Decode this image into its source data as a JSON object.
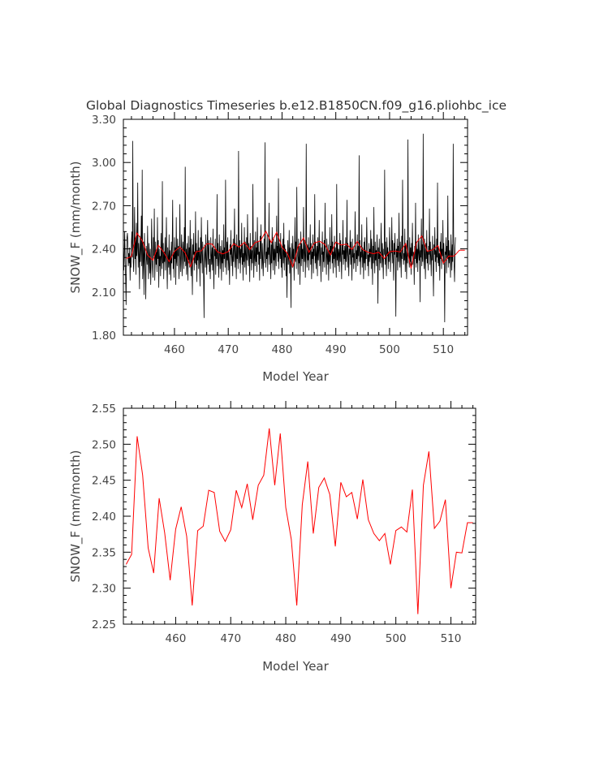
{
  "title": "Global Diagnostics Timeseries b.e12.B1850CN.f09_g16.pliohbc_ice",
  "chart_data": [
    {
      "type": "line",
      "xlabel": "Model Year",
      "ylabel": "SNOW_F (mm/month)",
      "xlim": [
        450.5,
        514.5
      ],
      "ylim": [
        1.8,
        3.3
      ],
      "x_ticks": [
        "460",
        "470",
        "480",
        "490",
        "500",
        "510"
      ],
      "y_ticks": [
        "1.80",
        "2.10",
        "2.40",
        "2.70",
        "3.00",
        "3.30"
      ],
      "grid": false,
      "legend": "none",
      "series": [
        {
          "color": "#000000",
          "description_hidden": "monthly values",
          "monthly_start_year": 450.5,
          "values": [
            2.42,
            2.25,
            2.38,
            2.52,
            2.3,
            2.2,
            2.01,
            2.36,
            2.48,
            2.51,
            2.43,
            2.28,
            2.37,
            2.3,
            2.41,
            2.18,
            2.35,
            2.27,
            2.45,
            2.52,
            2.34,
            3.15,
            2.31,
            2.24,
            2.39,
            2.69,
            2.33,
            2.47,
            2.22,
            2.58,
            2.35,
            2.41,
            2.86,
            2.27,
            2.44,
            2.36,
            2.12,
            2.49,
            2.31,
            2.4,
            2.63,
            2.28,
            2.95,
            2.19,
            2.33,
            2.45,
            2.08,
            2.51,
            2.37,
            2.26,
            2.05,
            2.42,
            2.34,
            2.29,
            2.56,
            2.31,
            2.19,
            2.44,
            2.36,
            2.23,
            2.4,
            2.15,
            2.31,
            2.61,
            2.42,
            2.27,
            2.2,
            2.48,
            2.35,
            2.68,
            2.18,
            2.31,
            2.45,
            2.29,
            2.38,
            2.24,
            2.62,
            2.33,
            2.46,
            2.13,
            2.4,
            2.28,
            2.35,
            2.21,
            2.51,
            2.34,
            2.26,
            2.87,
            2.3,
            2.44,
            2.19,
            2.38,
            2.31,
            2.48,
            2.25,
            2.36,
            2.62,
            2.29,
            2.12,
            2.41,
            2.34,
            2.27,
            2.5,
            2.22,
            2.39,
            2.33,
            2.18,
            2.45,
            2.3,
            2.43,
            2.74,
            2.26,
            2.37,
            2.2,
            2.48,
            2.33,
            2.41,
            2.15,
            2.62,
            2.31,
            2.28,
            2.47,
            2.35,
            2.42,
            2.19,
            2.29,
            2.71,
            2.36,
            2.24,
            2.39,
            2.5,
            2.21,
            2.33,
            2.45,
            2.38,
            2.26,
            2.55,
            2.31,
            2.97,
            2.28,
            2.4,
            2.22,
            2.44,
            2.35,
            2.18,
            2.49,
            2.32,
            2.41,
            2.27,
            2.6,
            2.34,
            2.21,
            2.47,
            2.3,
            2.08,
            2.43,
            2.36,
            2.51,
            2.25,
            2.38,
            2.3,
            2.66,
            2.29,
            2.44,
            2.17,
            2.39,
            2.32,
            2.53,
            2.26,
            2.41,
            2.35,
            2.14,
            2.48,
            2.3,
            2.62,
            2.37,
            2.23,
            2.45,
            2.31,
            2.2,
            1.92,
            2.43,
            2.36,
            2.27,
            2.5,
            2.34,
            2.22,
            2.41,
            2.6,
            2.29,
            2.38,
            2.46,
            2.24,
            2.33,
            2.19,
            2.48,
            2.36,
            2.29,
            2.41,
            2.25,
            2.54,
            2.31,
            2.12,
            2.4,
            2.35,
            2.47,
            2.22,
            2.39,
            2.33,
            2.78,
            2.28,
            2.44,
            2.31,
            2.2,
            2.5,
            2.37,
            2.26,
            2.42,
            2.35,
            2.18,
            2.46,
            2.3,
            2.39,
            2.24,
            2.57,
            2.33,
            2.41,
            2.27,
            2.88,
            2.36,
            2.22,
            2.45,
            2.32,
            2.48,
            2.25,
            2.38,
            2.3,
            2.15,
            2.43,
            2.36,
            2.53,
            2.28,
            2.41,
            2.34,
            2.21,
            2.47,
            2.31,
            2.39,
            2.68,
            2.27,
            2.44,
            2.35,
            2.19,
            2.5,
            2.33,
            2.42,
            2.26,
            3.08,
            2.38,
            2.3,
            2.46,
            2.23,
            2.4,
            2.34,
            2.58,
            2.29,
            2.43,
            2.18,
            2.37,
            2.31,
            2.55,
            2.27,
            2.45,
            2.36,
            2.22,
            2.48,
            2.32,
            2.64,
            2.4,
            2.28,
            2.44,
            2.35,
            2.17,
            2.51,
            2.33,
            2.42,
            2.25,
            2.39,
            2.3,
            2.85,
            2.37,
            2.2,
            2.46,
            2.34,
            2.28,
            2.52,
            2.31,
            2.41,
            2.24,
            2.62,
            2.36,
            2.45,
            2.29,
            2.38,
            2.18,
            2.49,
            2.33,
            2.57,
            2.4,
            2.26,
            2.44,
            2.31,
            2.21,
            2.35,
            2.47,
            2.3,
            3.14,
            2.42,
            2.27,
            2.38,
            2.33,
            2.5,
            2.24,
            2.41,
            2.36,
            2.72,
            2.29,
            2.46,
            2.34,
            2.19,
            2.43,
            2.3,
            2.55,
            2.38,
            2.25,
            2.48,
            2.32,
            2.4,
            2.22,
            2.45,
            2.35,
            2.28,
            2.63,
            2.37,
            2.42,
            2.31,
            2.89,
            2.26,
            2.44,
            2.39,
            2.33,
            2.51,
            2.27,
            2.41,
            2.2,
            2.36,
            2.47,
            2.3,
            2.58,
            2.25,
            2.43,
            2.34,
            2.4,
            2.21,
            2.38,
            2.06,
            2.32,
            2.46,
            2.29,
            2.35,
            2.53,
            2.23,
            2.41,
            2.3,
            1.99,
            2.44,
            2.36,
            2.27,
            2.49,
            2.33,
            2.4,
            2.18,
            2.37,
            2.62,
            2.31,
            2.45,
            2.26,
            2.83,
            2.38,
            2.34,
            2.22,
            2.47,
            2.3,
            2.42,
            2.15,
            2.36,
            2.52,
            2.28,
            2.44,
            2.33,
            2.4,
            2.24,
            2.69,
            2.37,
            2.31,
            2.46,
            2.2,
            2.39,
            3.13,
            2.35,
            2.27,
            2.43,
            2.32,
            2.48,
            2.25,
            2.41,
            2.36,
            2.57,
            2.29,
            2.44,
            2.19,
            2.38,
            2.33,
            2.5,
            2.23,
            2.4,
            2.35,
            2.78,
            2.3,
            2.45,
            2.26,
            2.37,
            2.42,
            2.21,
            2.48,
            2.32,
            2.39,
            2.6,
            2.28,
            2.44,
            2.34,
            2.17,
            2.41,
            2.36,
            2.52,
            2.24,
            2.38,
            2.31,
            2.46,
            2.27,
            2.72,
            2.4,
            2.33,
            2.22,
            2.47,
            2.35,
            2.29,
            2.43,
            2.18,
            2.39,
            2.31,
            2.55,
            2.26,
            2.42,
            2.36,
            2.64,
            2.3,
            2.45,
            2.23,
            2.38,
            2.33,
            2.49,
            2.27,
            2.41,
            2.35,
            2.2,
            2.85,
            2.32,
            2.44,
            2.28,
            2.4,
            2.37,
            2.24,
            2.51,
            2.31,
            2.46,
            2.34,
            2.19,
            2.43,
            2.36,
            2.6,
            2.29,
            2.39,
            2.33,
            2.42,
            2.25,
            2.48,
            2.31,
            2.38,
            2.74,
            2.27,
            2.44,
            2.35,
            2.21,
            2.4,
            2.36,
            2.53,
            2.29,
            2.45,
            2.32,
            2.18,
            2.47,
            2.34,
            2.41,
            2.26,
            2.37,
            2.3,
            2.66,
            2.43,
            2.24,
            2.39,
            2.33,
            2.5,
            2.28,
            2.42,
            2.35,
            3.05,
            2.31,
            2.46,
            2.22,
            2.38,
            2.34,
            2.57,
            2.27,
            2.41,
            2.36,
            2.19,
            2.45,
            2.3,
            2.48,
            2.25,
            2.39,
            2.33,
            2.62,
            2.42,
            2.28,
            2.36,
            2.21,
            2.44,
            2.31,
            2.4,
            2.34,
            2.53,
            2.26,
            2.47,
            2.37,
            2.15,
            2.42,
            2.3,
            2.69,
            2.35,
            2.23,
            2.45,
            2.32,
            2.39,
            2.28,
            2.5,
            2.36,
            2.02,
            2.41,
            2.33,
            2.47,
            2.25,
            2.38,
            2.3,
            2.58,
            2.42,
            2.27,
            2.44,
            2.34,
            2.19,
            2.4,
            2.36,
            2.95,
            2.29,
            2.45,
            2.32,
            2.21,
            2.48,
            2.35,
            2.41,
            2.26,
            2.38,
            2.31,
            2.55,
            2.43,
            2.24,
            2.39,
            2.37,
            2.62,
            2.3,
            2.46,
            2.33,
            2.18,
            2.44,
            2.36,
            2.51,
            2.28,
            1.93,
            2.4,
            2.34,
            2.47,
            2.25,
            2.42,
            2.31,
            2.65,
            2.38,
            2.27,
            2.45,
            2.35,
            2.2,
            2.49,
            2.33,
            2.88,
            2.41,
            2.29,
            2.37,
            2.32,
            2.54,
            2.24,
            2.43,
            2.36,
            2.19,
            2.46,
            2.3,
            3.16,
            2.39,
            2.34,
            2.27,
            2.48,
            2.31,
            2.41,
            2.22,
            2.44,
            2.35,
            2.58,
            2.29,
            2.38,
            2.36,
            2.15,
            2.42,
            2.33,
            2.72,
            2.27,
            2.45,
            2.3,
            2.4,
            2.24,
            2.5,
            2.37,
            2.32,
            2.46,
            2.03,
            2.39,
            2.34,
            2.61,
            2.28,
            2.43,
            2.31,
            3.2,
            2.41,
            2.26,
            2.47,
            2.35,
            2.19,
            2.44,
            2.33,
            2.53,
            2.3,
            2.38,
            2.25,
            2.42,
            2.36,
            2.68,
            2.29,
            2.45,
            2.34,
            2.21,
            2.4,
            2.32,
            2.49,
            2.27,
            2.07,
            2.43,
            2.36,
            2.55,
            2.31,
            2.39,
            2.24,
            2.47,
            2.34,
            2.86,
            2.3,
            2.42,
            2.28,
            2.37,
            2.18,
            2.45,
            2.33,
            2.51,
            2.26,
            2.4,
            2.35,
            2.6,
            2.29,
            2.44,
            2.31,
            1.89,
            2.38,
            2.36,
            2.48,
            2.23,
            2.42,
            2.33,
            2.77,
            2.27,
            2.46,
            2.3,
            2.39,
            2.34,
            2.2,
            2.5,
            2.37,
            2.25,
            2.43,
            2.31,
            3.13,
            2.45,
            2.28,
            2.17,
            2.4,
            2.48
          ]
        },
        {
          "color": "#ff0000",
          "annual_x": [
            451,
            452,
            453,
            454,
            455,
            456,
            457,
            458,
            459,
            460,
            461,
            462,
            463,
            464,
            465,
            466,
            467,
            468,
            469,
            470,
            471,
            472,
            473,
            474,
            475,
            476,
            477,
            478,
            479,
            480,
            481,
            482,
            483,
            484,
            485,
            486,
            487,
            488,
            489,
            490,
            491,
            492,
            493,
            494,
            495,
            496,
            497,
            498,
            499,
            500,
            501,
            502,
            503,
            504,
            505,
            506,
            507,
            508,
            509,
            510,
            511,
            512,
            513,
            514
          ],
          "values": [
            2.333,
            2.347,
            2.511,
            2.457,
            2.356,
            2.321,
            2.425,
            2.377,
            2.311,
            2.382,
            2.413,
            2.372,
            2.276,
            2.38,
            2.386,
            2.436,
            2.433,
            2.379,
            2.365,
            2.381,
            2.436,
            2.412,
            2.445,
            2.395,
            2.443,
            2.457,
            2.522,
            2.443,
            2.515,
            2.412,
            2.368,
            2.276,
            2.416,
            2.476,
            2.376,
            2.44,
            2.453,
            2.43,
            2.358,
            2.447,
            2.427,
            2.433,
            2.396,
            2.451,
            2.395,
            2.376,
            2.366,
            2.376,
            2.333,
            2.38,
            2.385,
            2.378,
            2.437,
            2.264,
            2.443,
            2.49,
            2.383,
            2.393,
            2.423,
            2.3,
            2.35,
            2.349,
            2.391,
            2.391
          ]
        }
      ]
    },
    {
      "type": "line",
      "xlabel": "Model Year",
      "ylabel": "SNOW_F (mm/month)",
      "xlim": [
        450.5,
        514.5
      ],
      "ylim": [
        2.25,
        2.55
      ],
      "x_ticks": [
        "460",
        "470",
        "480",
        "490",
        "500",
        "510"
      ],
      "y_ticks": [
        "2.25",
        "2.30",
        "2.35",
        "2.40",
        "2.45",
        "2.50",
        "2.55"
      ],
      "grid": false,
      "legend": "none",
      "series": [
        {
          "color": "#ff0000",
          "x": [
            451,
            452,
            453,
            454,
            455,
            456,
            457,
            458,
            459,
            460,
            461,
            462,
            463,
            464,
            465,
            466,
            467,
            468,
            469,
            470,
            471,
            472,
            473,
            474,
            475,
            476,
            477,
            478,
            479,
            480,
            481,
            482,
            483,
            484,
            485,
            486,
            487,
            488,
            489,
            490,
            491,
            492,
            493,
            494,
            495,
            496,
            497,
            498,
            499,
            500,
            501,
            502,
            503,
            504,
            505,
            506,
            507,
            508,
            509,
            510,
            511,
            512,
            513,
            514
          ],
          "values": [
            2.333,
            2.347,
            2.511,
            2.457,
            2.356,
            2.321,
            2.425,
            2.377,
            2.311,
            2.382,
            2.413,
            2.372,
            2.276,
            2.38,
            2.386,
            2.436,
            2.433,
            2.379,
            2.365,
            2.381,
            2.436,
            2.412,
            2.445,
            2.395,
            2.443,
            2.457,
            2.522,
            2.443,
            2.515,
            2.412,
            2.368,
            2.276,
            2.416,
            2.476,
            2.376,
            2.44,
            2.453,
            2.43,
            2.358,
            2.447,
            2.427,
            2.433,
            2.396,
            2.451,
            2.395,
            2.376,
            2.366,
            2.376,
            2.333,
            2.38,
            2.385,
            2.378,
            2.437,
            2.264,
            2.443,
            2.49,
            2.383,
            2.393,
            2.423,
            2.3,
            2.35,
            2.349,
            2.391,
            2.391
          ]
        }
      ]
    }
  ]
}
